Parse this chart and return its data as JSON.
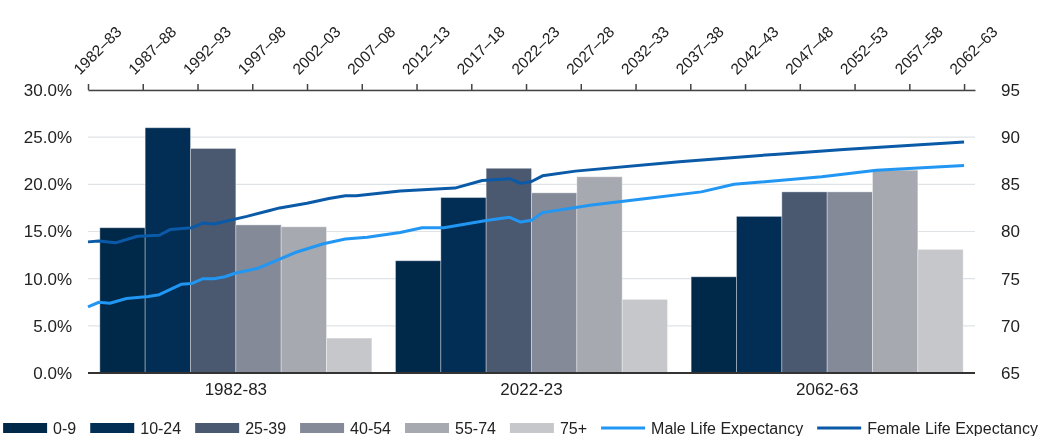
{
  "chart_data": [
    {
      "type": "bar",
      "categories": [
        "1982-83",
        "2022-23",
        "2062-63"
      ],
      "series": [
        {
          "name": "0-9",
          "color": "#002849",
          "values": [
            15.4,
            11.9,
            10.2
          ]
        },
        {
          "name": "10-24",
          "color": "#022e56",
          "values": [
            26.0,
            18.6,
            16.6
          ]
        },
        {
          "name": "25-39",
          "color": "#4a5870",
          "values": [
            23.8,
            21.7,
            19.2
          ]
        },
        {
          "name": "40-54",
          "color": "#848a98",
          "values": [
            15.7,
            19.1,
            19.2
          ]
        },
        {
          "name": "55-74",
          "color": "#a7a9b0",
          "values": [
            15.5,
            20.8,
            21.5
          ]
        },
        {
          "name": "75+",
          "color": "#c6c7cb",
          "values": [
            3.7,
            7.8,
            13.1
          ]
        }
      ],
      "ylim": [
        0,
        30
      ],
      "yticks": [
        {
          "value": 0,
          "label": "0.0%"
        },
        {
          "value": 5,
          "label": "5.0%"
        },
        {
          "value": 10,
          "label": "10.0%"
        },
        {
          "value": 15,
          "label": "15.0%"
        },
        {
          "value": 20,
          "label": "20.0%"
        },
        {
          "value": 25,
          "label": "25.0%"
        },
        {
          "value": 30,
          "label": "30.0%"
        }
      ],
      "grid": "y",
      "legend": "bottom"
    },
    {
      "type": "line",
      "series": [
        {
          "name": "Male Life Expectancy",
          "color": "#2196f3",
          "x": [
            "1982-07",
            "1983-07",
            "1984-07",
            "1986-01",
            "1988-01",
            "1989-01",
            "1991-01",
            "1992-01",
            "1993-01",
            "1994-01",
            "1995-01",
            "1996-01",
            "1998-01",
            "2001-07",
            "2004-01",
            "2006-01",
            "2008-01",
            "2011-01",
            "2013-01",
            "2015-01",
            "2019-01",
            "2021-01",
            "2022-01",
            "2023-01",
            "2024-01",
            "2028-07",
            "2033-07",
            "2038-07",
            "2041-07",
            "2049-07",
            "2054-07",
            "2062-07"
          ],
          "values": [
            72.0,
            72.5,
            72.4,
            72.9,
            73.1,
            73.3,
            74.4,
            74.5,
            75.0,
            75.0,
            75.2,
            75.6,
            76.1,
            77.8,
            78.7,
            79.2,
            79.4,
            79.9,
            80.4,
            80.4,
            81.2,
            81.5,
            81.0,
            81.2,
            82.0,
            82.8,
            83.5,
            84.2,
            85.0,
            85.8,
            86.5,
            87.0
          ]
        },
        {
          "name": "Female Life Expectancy",
          "color": "#0a5aa8",
          "x": [
            "1982-07",
            "1983-07",
            "1985-01",
            "1987-01",
            "1989-01",
            "1990-01",
            "1992-01",
            "1993-01",
            "1994-01",
            "1997-01",
            "1999-01",
            "2000-01",
            "2002-07",
            "2004-07",
            "2006-01",
            "2007-01",
            "2011-01",
            "2016-01",
            "2018-07",
            "2021-01",
            "2022-01",
            "2023-01",
            "2024-01",
            "2027-01",
            "2036-07",
            "2045-07",
            "2051-07",
            "2062-07"
          ],
          "values": [
            78.9,
            79.0,
            78.8,
            79.5,
            79.6,
            80.2,
            80.4,
            80.9,
            80.8,
            81.6,
            82.2,
            82.5,
            83.0,
            83.5,
            83.8,
            83.8,
            84.3,
            84.6,
            85.4,
            85.6,
            85.1,
            85.3,
            85.9,
            86.4,
            87.4,
            88.2,
            88.7,
            89.5
          ]
        }
      ],
      "ylim": [
        65,
        95
      ],
      "yticks": [
        65,
        70,
        75,
        80,
        85,
        90,
        95
      ],
      "xlim": [
        "1982-07",
        "2063-07"
      ],
      "xticks": [
        {
          "value": "1982-07",
          "label": "1982–83"
        },
        {
          "value": "1987-07",
          "label": "1987–88"
        },
        {
          "value": "1992-07",
          "label": "1992–93"
        },
        {
          "value": "1997-07",
          "label": "1997–98"
        },
        {
          "value": "2002-07",
          "label": "2002–03"
        },
        {
          "value": "2007-07",
          "label": "2007–08"
        },
        {
          "value": "2012-07",
          "label": "2012–13"
        },
        {
          "value": "2017-07",
          "label": "2017–18"
        },
        {
          "value": "2022-07",
          "label": "2022–23"
        },
        {
          "value": "2027-07",
          "label": "2027–28"
        },
        {
          "value": "2032-07",
          "label": "2032–33"
        },
        {
          "value": "2037-07",
          "label": "2037–38"
        },
        {
          "value": "2042-07",
          "label": "2042–43"
        },
        {
          "value": "2047-07",
          "label": "2047–48"
        },
        {
          "value": "2052-07",
          "label": "2052–53"
        },
        {
          "value": "2057-07",
          "label": "2057–58"
        },
        {
          "value": "2062-07",
          "label": "2062–63"
        }
      ],
      "legend": "bottom",
      "line_style": "solid",
      "marker": "none"
    }
  ]
}
